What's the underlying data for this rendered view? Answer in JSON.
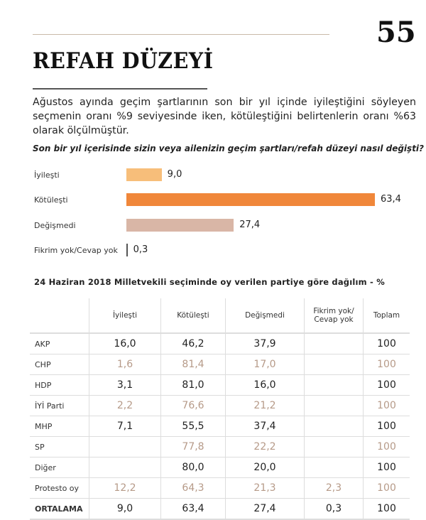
{
  "page_number": "55",
  "title": "REFAH DÜZEYİ",
  "intro": "Ağustos ayında geçim şartlarının son bir yıl içinde iyileştiğini söyleyen seçmenin oranı %9 seviyesinde iken, kötüleştiğini belirtenlerin oranı %63 olarak ölçülmüştür.",
  "colors": {
    "iyilesti": "#f7be7a",
    "kotulesti": "#f0873a",
    "degismedi": "#d9b6a6",
    "fikrim_yok": "#555555",
    "alt_text": "#b69a88"
  },
  "chart_data": [
    {
      "type": "bar",
      "orientation": "horizontal",
      "title": "Son bir yıl içerisinde sizin veya ailenizin geçim şartları/refah düzeyi nasıl değişti?",
      "categories": [
        "İyileşti",
        "Kötüleşti",
        "Değişmedi",
        "Fikrim yok/Cevap yok"
      ],
      "values": [
        9.0,
        63.4,
        27.4,
        0.3
      ],
      "value_labels": [
        "9,0",
        "63,4",
        "27,4",
        "0,3"
      ],
      "xlim": [
        0,
        63.4
      ]
    },
    {
      "type": "table",
      "title": "24 Haziran 2018 Milletvekili seçiminde oy verilen partiye göre dağılım - %",
      "columns": [
        "",
        "İyileşti",
        "Kötüleşti",
        "Değişmedi",
        "Fikrim yok/\nCevap yok",
        "Toplam"
      ],
      "rows": [
        {
          "party": "AKP",
          "values": [
            "16,0",
            "46,2",
            "37,9",
            "",
            "100"
          ],
          "alt": false
        },
        {
          "party": "CHP",
          "values": [
            "1,6",
            "81,4",
            "17,0",
            "",
            "100"
          ],
          "alt": true
        },
        {
          "party": "HDP",
          "values": [
            "3,1",
            "81,0",
            "16,0",
            "",
            "100"
          ],
          "alt": false
        },
        {
          "party": "İYİ Parti",
          "values": [
            "2,2",
            "76,6",
            "21,2",
            "",
            "100"
          ],
          "alt": true
        },
        {
          "party": "MHP",
          "values": [
            "7,1",
            "55,5",
            "37,4",
            "",
            "100"
          ],
          "alt": false
        },
        {
          "party": "SP",
          "values": [
            "",
            "77,8",
            "22,2",
            "",
            "100"
          ],
          "alt": true
        },
        {
          "party": "Diğer",
          "values": [
            "",
            "80,0",
            "20,0",
            "",
            "100"
          ],
          "alt": false
        },
        {
          "party": "Protesto oy",
          "values": [
            "12,2",
            "64,3",
            "21,3",
            "2,3",
            "100"
          ],
          "alt": true
        },
        {
          "party": "ORTALAMA",
          "values": [
            "9,0",
            "63,4",
            "27,4",
            "0,3",
            "100"
          ],
          "alt": false,
          "avg": true
        }
      ]
    }
  ]
}
